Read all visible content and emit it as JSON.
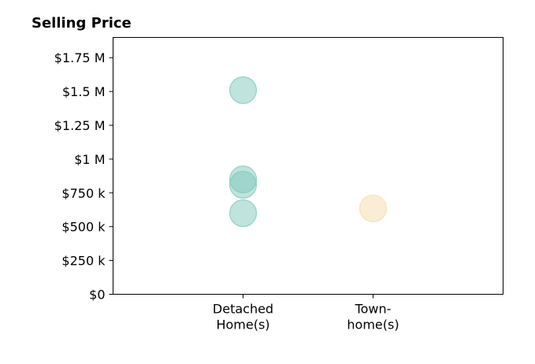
{
  "chart_data": {
    "type": "scatter",
    "title": "Selling Price",
    "xlabel": "",
    "ylabel": "",
    "ylim": [
      0,
      1900000
    ],
    "yticks": [
      {
        "value": 0,
        "label": "$0"
      },
      {
        "value": 250000,
        "label": "$250 k"
      },
      {
        "value": 500000,
        "label": "$500 k"
      },
      {
        "value": 750000,
        "label": "$750 k"
      },
      {
        "value": 1000000,
        "label": "$1 M"
      },
      {
        "value": 1250000,
        "label": "$1.25 M"
      },
      {
        "value": 1500000,
        "label": "$1.5 M"
      },
      {
        "value": 1750000,
        "label": "$1.75 M"
      }
    ],
    "categories": [
      {
        "lines": [
          "Detached",
          "Home(s)"
        ]
      },
      {
        "lines": [
          "Town-",
          "home(s)"
        ]
      }
    ],
    "xlim": [
      -1,
      2
    ],
    "grid": false,
    "series": [
      {
        "color": "#7fc7bb",
        "points": [
          {
            "x": 0,
            "y": 1510000
          },
          {
            "x": 0,
            "y": 850000
          },
          {
            "x": 0,
            "y": 810000
          },
          {
            "x": 0,
            "y": 600000
          }
        ]
      },
      {
        "color": "#f7dca7",
        "points": [
          {
            "x": 1,
            "y": 635000
          }
        ]
      }
    ]
  }
}
